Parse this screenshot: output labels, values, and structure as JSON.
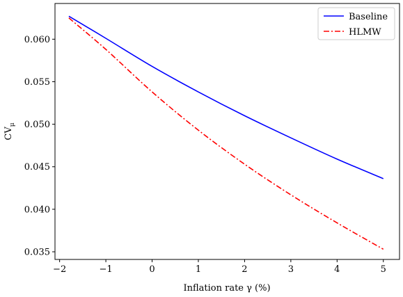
{
  "chart_data": {
    "type": "line",
    "xlabel": "Inflation rate γ (%)",
    "ylabel": "CVμ",
    "xlim": [
      -2.1,
      5.35
    ],
    "ylim": [
      0.0341,
      0.0642
    ],
    "x_ticks": [
      -2,
      -1,
      0,
      1,
      2,
      3,
      4,
      5
    ],
    "x_tick_labels": [
      "−2",
      "−1",
      "0",
      "1",
      "2",
      "3",
      "4",
      "5"
    ],
    "y_ticks": [
      0.035,
      0.04,
      0.045,
      0.05,
      0.055,
      0.06
    ],
    "y_tick_labels": [
      "0.035",
      "0.040",
      "0.045",
      "0.050",
      "0.055",
      "0.060"
    ],
    "grid": false,
    "legend_position": "top-right",
    "series": [
      {
        "name": "Baseline",
        "color": "#0000ff",
        "dash": "solid",
        "x": [
          -1.8,
          -1,
          0,
          1,
          2,
          3,
          4,
          5
        ],
        "y": [
          0.0627,
          0.0601,
          0.0568,
          0.0538,
          0.051,
          0.0484,
          0.0459,
          0.0436
        ]
      },
      {
        "name": "HLMW",
        "color": "#ff0000",
        "dash": "dashdot",
        "x": [
          -1.8,
          -1,
          0,
          1,
          2,
          3,
          4,
          5
        ],
        "y": [
          0.0625,
          0.0588,
          0.0538,
          0.0493,
          0.0453,
          0.0417,
          0.0384,
          0.0353
        ]
      }
    ]
  }
}
